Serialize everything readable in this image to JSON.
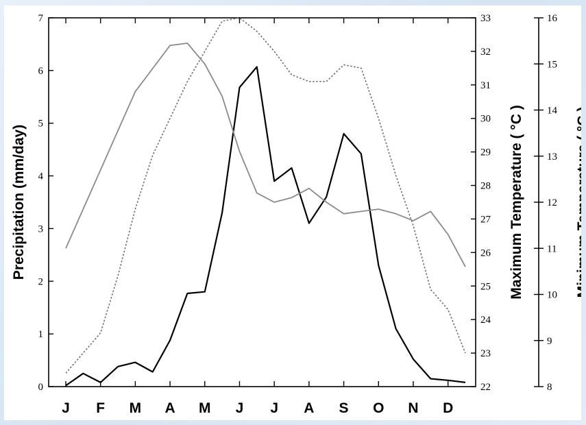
{
  "chart_data": {
    "type": "line",
    "categories": [
      "J",
      "F",
      "M",
      "A",
      "M",
      "J",
      "J",
      "A",
      "S",
      "O",
      "N",
      "D"
    ],
    "ylabel_left": "Precipitation (mm/day)",
    "ylabel_right1": "Maximum Temperature ( °C )",
    "ylabel_right2": "Minimum Temperature ( °C )",
    "axes": {
      "left": {
        "min": 0,
        "max": 7,
        "ticks": [
          0,
          1,
          2,
          3,
          4,
          5,
          6,
          7
        ]
      },
      "right1": {
        "min": 22,
        "max": 33,
        "ticks": [
          22,
          23,
          24,
          25,
          26,
          27,
          28,
          29,
          30,
          31,
          32,
          33
        ]
      },
      "right2": {
        "min": 8,
        "max": 16,
        "ticks": [
          8,
          9,
          10,
          11,
          12,
          13,
          14,
          15,
          16
        ]
      }
    },
    "series": [
      {
        "style": "solid-black",
        "axis": "left",
        "x": [
          0,
          0.5,
          1,
          1.5,
          2,
          2.5,
          3,
          3.5,
          4,
          4.5,
          5,
          5.5,
          6,
          6.5,
          7,
          7.5,
          8,
          8.5,
          9,
          9.5,
          10,
          10.5,
          11,
          11.5
        ],
        "values": [
          0.02,
          0.25,
          0.08,
          0.38,
          0.46,
          0.28,
          0.88,
          1.77,
          1.8,
          3.3,
          5.68,
          6.07,
          3.9,
          4.15,
          3.1,
          3.6,
          4.8,
          4.42,
          2.3,
          1.1,
          0.52,
          0.15,
          0.12,
          0.08
        ]
      },
      {
        "style": "dotted-gray",
        "axis": "right1",
        "x": [
          0,
          0.5,
          1,
          1.5,
          2,
          2.5,
          3,
          3.5,
          4,
          4.5,
          5,
          5.5,
          6,
          6.5,
          7,
          7.5,
          8,
          8.5,
          9,
          9.5,
          10,
          10.5,
          11,
          11.5
        ],
        "values": [
          22.4,
          23.0,
          23.6,
          25.3,
          27.3,
          28.9,
          30.0,
          31.1,
          32.0,
          32.9,
          33.0,
          32.6,
          32.0,
          31.3,
          31.1,
          31.1,
          31.6,
          31.5,
          30.0,
          28.3,
          26.8,
          24.9,
          24.3,
          23.0
        ]
      },
      {
        "style": "solid-gray",
        "axis": "right2",
        "x": [
          0,
          0.5,
          1,
          1.5,
          2,
          2.5,
          3,
          3.5,
          4,
          4.5,
          5,
          5.5,
          6,
          6.5,
          7,
          7.5,
          8,
          8.5,
          9,
          9.5,
          10,
          10.5,
          11,
          11.5
        ],
        "values": [
          11.0,
          11.85,
          12.7,
          13.55,
          14.4,
          14.9,
          15.4,
          15.45,
          15.0,
          14.3,
          13.1,
          12.2,
          12.0,
          12.1,
          12.3,
          12.0,
          11.75,
          11.8,
          11.85,
          11.75,
          11.6,
          11.8,
          11.3,
          10.6
        ]
      }
    ]
  }
}
